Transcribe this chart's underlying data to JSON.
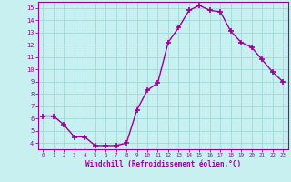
{
  "x": [
    0,
    1,
    2,
    3,
    4,
    5,
    6,
    7,
    8,
    9,
    10,
    11,
    12,
    13,
    14,
    15,
    16,
    17,
    18,
    19,
    20,
    21,
    22,
    23
  ],
  "y": [
    6.2,
    6.2,
    5.5,
    4.5,
    4.5,
    3.8,
    3.8,
    3.8,
    4.0,
    6.7,
    8.3,
    8.9,
    12.2,
    13.4,
    14.8,
    15.2,
    14.8,
    14.7,
    13.1,
    12.2,
    11.8,
    10.8,
    9.8,
    9.0
  ],
  "line_color": "#990099",
  "marker": "+",
  "marker_size": 4,
  "marker_linewidth": 1.2,
  "bg_color": "#c8f0f0",
  "grid_color": "#a0d8d8",
  "xlabel": "Windchill (Refroidissement éolien,°C)",
  "xlim": [
    -0.5,
    23.5
  ],
  "ylim": [
    3.5,
    15.5
  ],
  "yticks": [
    4,
    5,
    6,
    7,
    8,
    9,
    10,
    11,
    12,
    13,
    14,
    15
  ],
  "xticks": [
    0,
    1,
    2,
    3,
    4,
    5,
    6,
    7,
    8,
    9,
    10,
    11,
    12,
    13,
    14,
    15,
    16,
    17,
    18,
    19,
    20,
    21,
    22,
    23
  ],
  "axis_color": "#990099",
  "tick_label_color": "#990099",
  "xlabel_color": "#990099",
  "line_width": 1.0
}
